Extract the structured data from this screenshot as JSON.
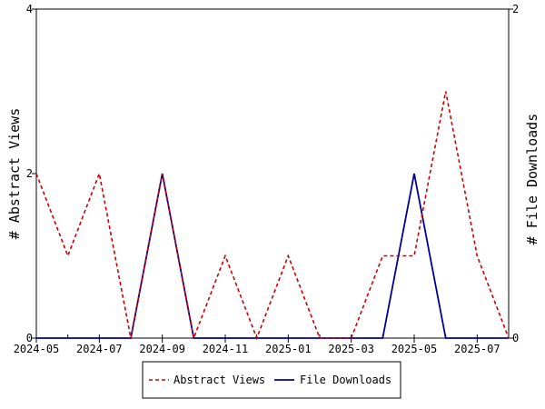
{
  "chart_data": {
    "type": "line",
    "x": [
      "2024-05",
      "2024-06",
      "2024-07",
      "2024-08",
      "2024-09",
      "2024-10",
      "2024-11",
      "2024-12",
      "2025-01",
      "2025-02",
      "2025-03",
      "2025-04",
      "2025-05",
      "2025-06",
      "2025-07",
      "2025-08"
    ],
    "x_tick_labels": [
      "2024-05",
      "2024-07",
      "2024-09",
      "2024-11",
      "2025-01",
      "2025-03",
      "2025-05",
      "2025-07"
    ],
    "series": [
      {
        "name": "Abstract Views",
        "axis": "left",
        "color": "#cc0000",
        "dash": "dashed",
        "values": [
          2,
          1,
          2,
          0,
          2,
          0,
          1,
          0,
          1,
          0,
          0,
          1,
          1,
          3,
          1,
          0
        ]
      },
      {
        "name": "File Downloads",
        "axis": "right",
        "color": "#000099",
        "dash": "solid",
        "values": [
          0,
          0,
          0,
          0,
          1,
          0,
          0,
          0,
          0,
          0,
          0,
          0,
          1,
          0,
          0,
          0
        ]
      }
    ],
    "ylabel": "# Abstract Views",
    "y2label": "# File Downloads",
    "ylim": [
      0,
      4
    ],
    "y2lim": [
      0,
      2
    ],
    "y_ticks": [
      "0",
      "2",
      "4"
    ],
    "y2_ticks": [
      "0",
      "2"
    ],
    "grid": false,
    "legend_position": "bottom"
  }
}
